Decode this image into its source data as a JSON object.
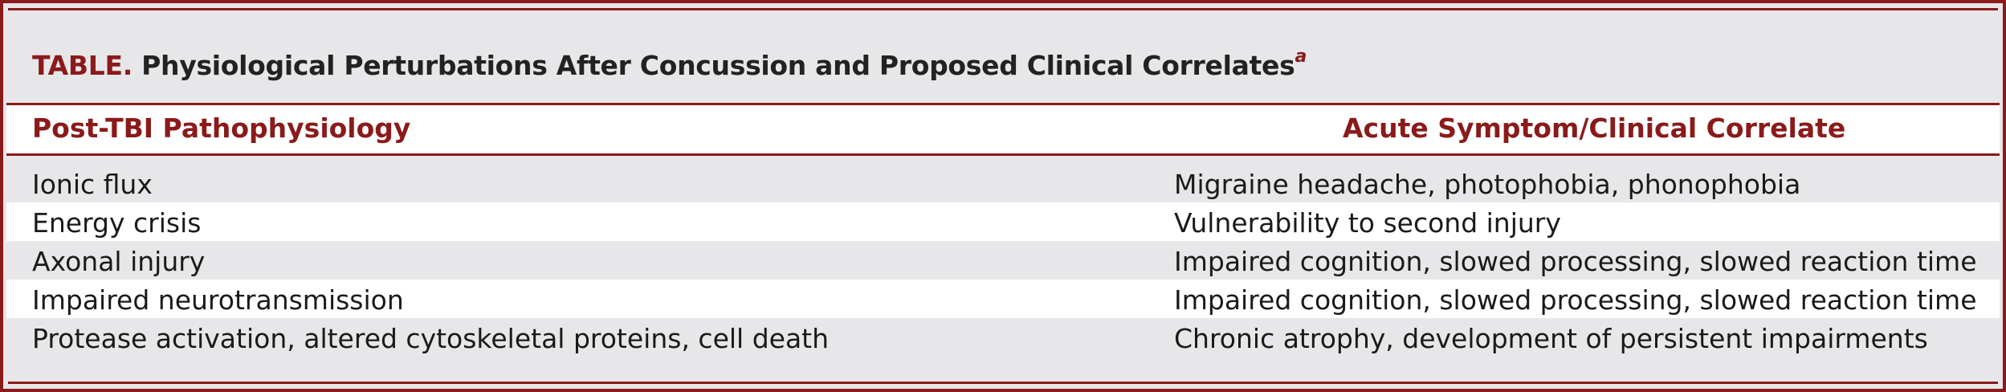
{
  "table": {
    "label": "TABLE.",
    "title": "Physiological Perturbations After Concussion and Proposed Clinical Correlates",
    "footnote_marker": "a",
    "headers": [
      "Post-TBI Pathophysiology",
      "Acute Symptom/Clinical Correlate"
    ],
    "rows": [
      [
        "Ionic flux",
        "Migraine headache, photophobia, phonophobia"
      ],
      [
        "Energy crisis",
        "Vulnerability to second injury"
      ],
      [
        "Axonal injury",
        "Impaired cognition, slowed processing, slowed reaction time"
      ],
      [
        "Impaired neurotransmission",
        "Impaired cognition, slowed processing, slowed reaction time"
      ],
      [
        "Protease activation, altered cytoskeletal proteins, cell death",
        "Chronic atrophy, development of persistent impairments"
      ]
    ]
  },
  "colors": {
    "accent": "#8b1a1a",
    "shade": "#e7e7e9",
    "text": "#1a1a1a"
  }
}
